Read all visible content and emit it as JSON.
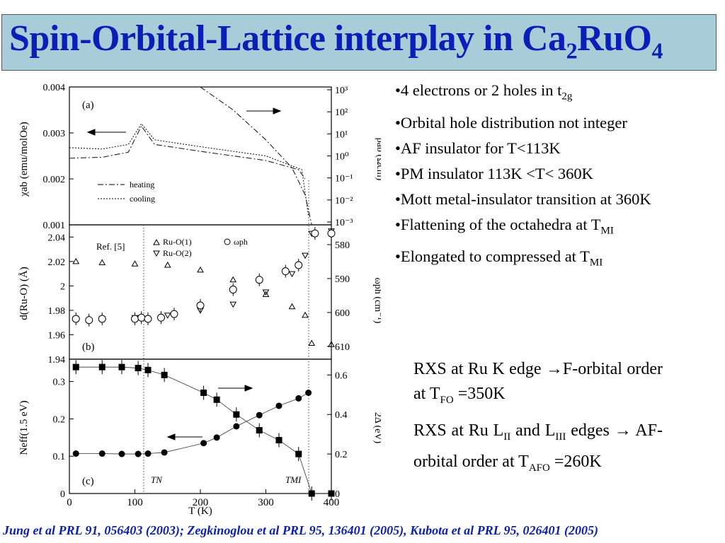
{
  "title": {
    "main": "Spin-Orbital-Lattice interplay in Ca",
    "sub1": "2",
    "mid": "RuO",
    "sub2": "4"
  },
  "bullets": [
    {
      "pre": "•4 electrons  or 2 holes in t",
      "sub": "2g",
      "post": ""
    },
    {
      "pre": "•Orbital  hole  distribution  not integer",
      "sub": "",
      "post": ""
    },
    {
      "pre": "•AF insulator for T<113K",
      "sub": "",
      "post": ""
    },
    {
      "pre": "•PM insulator  113K <T< 360K",
      "sub": "",
      "post": ""
    },
    {
      "pre": "•Mott  metal-insulator  transition at 360K",
      "sub": "",
      "post": ""
    },
    {
      "pre": "•Flattening  of  the  octahedra  at T",
      "sub": "MI",
      "post": ""
    },
    {
      "pre": "•Elongated to compressed at T",
      "sub": "MI",
      "post": ""
    }
  ],
  "rxs": [
    {
      "pre": "RXS at Ru K edge ",
      "arrow": "→",
      "mid": "F-orbital order at T",
      "sub": "FO",
      "post": " =350K"
    },
    {
      "pre": "RXS at Ru L",
      "sub1": "II",
      "mid1": " and L",
      "sub2": "III",
      "mid2": " edges ",
      "arrow": "→",
      "mid3": " AF-orbital order at T",
      "sub3": "AFO",
      "post": " =260K"
    }
  ],
  "references": "Jung et al  PRL 91, 056403 (2003); Zegkinoglou et al  PRL 95, 136401 (2005), Kubota et al  PRL 95, 026401 (2005)",
  "colors": {
    "title": "#0a1fb5",
    "title_bg": "#a9ccd9",
    "refs": "#0a1fb5"
  },
  "chart_data": [
    {
      "type": "line",
      "panel_label": "(a)",
      "ylabel_left": "χab (emu/molOe)",
      "ylabel_right": "ρab (Ωcm)",
      "yticks_left": [
        "0.004",
        "0.003",
        "0.002",
        "0.001"
      ],
      "yticks_right": [
        "10³",
        "10²",
        "10¹",
        "10⁰",
        "10⁻¹",
        "10⁻²",
        "10⁻³"
      ],
      "ylim_left": [
        0.001,
        0.004
      ],
      "legend": [
        {
          "label": "heating",
          "style": "dash-dot"
        },
        {
          "label": "cooling",
          "style": "dotted"
        }
      ],
      "series": [
        {
          "name": "heating",
          "x": [
            0,
            50,
            90,
            110,
            130,
            200,
            300,
            350,
            360
          ],
          "y": [
            0.00245,
            0.00247,
            0.00258,
            0.00315,
            0.00275,
            0.0026,
            0.0024,
            0.0022,
            0.002
          ]
        },
        {
          "name": "cooling",
          "x": [
            0,
            50,
            90,
            110,
            130,
            200,
            300,
            355,
            365
          ],
          "y": [
            0.00268,
            0.00265,
            0.00275,
            0.0032,
            0.00285,
            0.0027,
            0.0025,
            0.0022,
            0.0012
          ]
        },
        {
          "name": "ρab",
          "x": [
            200,
            250,
            300,
            340,
            360,
            370
          ],
          "y": [
            1000,
            100,
            5,
            0.3,
            0.02,
            0.001
          ]
        }
      ]
    },
    {
      "type": "scatter",
      "panel_label": "(b)",
      "ref_label": "Ref. [5]",
      "ylabel_left": "d(Ru-O) (Å)",
      "ylabel_right": "ωph (cm⁻¹)",
      "yticks_left": [
        "2.04",
        "2.02",
        "2",
        "1.98",
        "1.96",
        "1.94"
      ],
      "yticks_right": [
        "580",
        "590",
        "600",
        "610"
      ],
      "ylim_left": [
        1.94,
        2.05
      ],
      "legend": [
        {
          "label": "Ru-O(1)",
          "marker": "triangle-up"
        },
        {
          "label": "Ru-O(2)",
          "marker": "triangle-down"
        },
        {
          "label": "ωph",
          "marker": "circle"
        }
      ],
      "series": [
        {
          "name": "Ru-O(1)",
          "x": [
            10,
            50,
            100,
            150,
            200,
            250,
            300,
            340,
            360,
            370,
            400
          ],
          "y": [
            2.02,
            2.019,
            2.018,
            2.017,
            2.013,
            2.005,
            1.993,
            1.983,
            1.976,
            1.953,
            1.952
          ]
        },
        {
          "name": "Ru-O(2)",
          "x": [
            10,
            50,
            100,
            150,
            200,
            250,
            300,
            340,
            360,
            370,
            400
          ],
          "y": [
            1.973,
            1.973,
            1.974,
            1.976,
            1.98,
            1.985,
            1.995,
            2.01,
            2.025,
            2.043,
            2.045
          ]
        },
        {
          "name": "ωph",
          "x": [
            10,
            30,
            50,
            100,
            110,
            120,
            140,
            160,
            200,
            250,
            290,
            330,
            350,
            375,
            400
          ],
          "y": [
            1.973,
            1.972,
            1.973,
            1.973,
            1.974,
            1.973,
            1.974,
            1.977,
            1.984,
            1.997,
            2.005,
            2.012,
            2.017,
            2.043,
            2.043
          ]
        }
      ]
    },
    {
      "type": "scatter",
      "panel_label": "(c)",
      "xlabel": "T (K)",
      "ylabel_left": "Neff(1.5 eV)",
      "ylabel_right": "2Δ (eV)",
      "xticks": [
        "0",
        "100",
        "200",
        "300",
        "400"
      ],
      "xlim": [
        0,
        400
      ],
      "yticks_left": [
        "0.3",
        "0.2",
        "0.1",
        "0"
      ],
      "yticks_right": [
        "0.6",
        "0.4",
        "0.2",
        "0"
      ],
      "ylim_left": [
        0,
        0.36
      ],
      "annotations": [
        "TN",
        "TMI"
      ],
      "series": [
        {
          "name": "Neff",
          "x": [
            10,
            50,
            80,
            105,
            120,
            145,
            205,
            225,
            255,
            290,
            320,
            350,
            365
          ],
          "y": [
            0.107,
            0.107,
            0.106,
            0.106,
            0.107,
            0.11,
            0.135,
            0.15,
            0.18,
            0.21,
            0.235,
            0.255,
            0.27
          ]
        },
        {
          "name": "2Δ",
          "x": [
            10,
            50,
            80,
            105,
            120,
            145,
            205,
            225,
            255,
            290,
            320,
            350,
            370,
            400
          ],
          "y": [
            0.64,
            0.64,
            0.64,
            0.635,
            0.625,
            0.6,
            0.51,
            0.475,
            0.4,
            0.32,
            0.27,
            0.2,
            0,
            0
          ]
        }
      ]
    }
  ]
}
